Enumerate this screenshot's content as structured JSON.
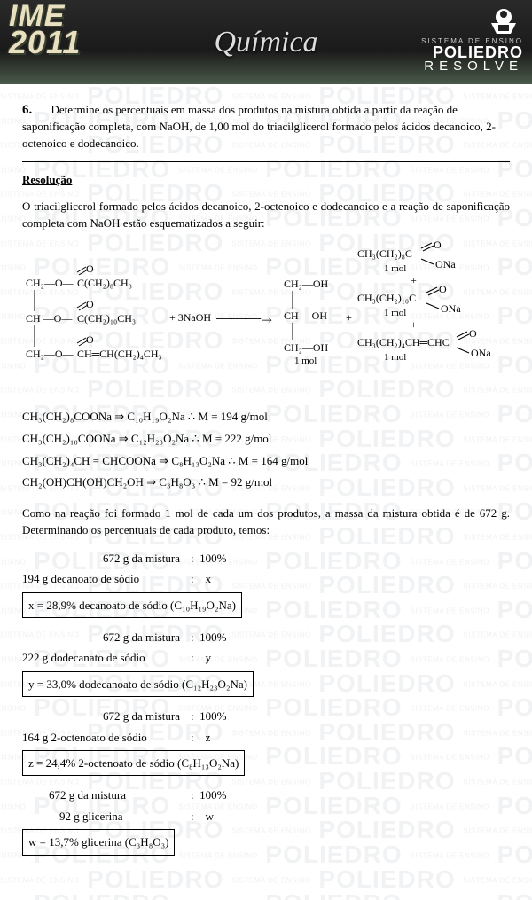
{
  "header": {
    "ime_line1": "IME",
    "ime_line2": "2011",
    "subject": "Química",
    "brand_sys": "SISTEMA DE ENSINO",
    "brand_name": "POLIEDRO",
    "brand_sub": "RESOLVE"
  },
  "watermark": {
    "big": "POLIEDRO",
    "small": "SISTEMA DE ENSINO"
  },
  "question": {
    "number": "6.",
    "text": "Determine os percentuais em massa dos produtos na mistura obtida a partir da reação de saponificação completa, com NaOH, de 1,00 mol do triacilglicerol formado pelos ácidos decanoico, 2-octenoico e dodecanoico."
  },
  "res_title": "Resolução",
  "intro": "O triacilglicerol formado pelos ácidos decanoico, 2-octenoico e dodecanoico e a reação de saponificação completa com  NaOH  estão esquematizados a seguir:",
  "scheme": {
    "r1": "C(CH₂)₈CH₃",
    "r2": "C(CH₂)₁₀CH₃",
    "r3": "CH═CH(CH₂)₄CH₃",
    "reagent": "+ 3NaOH",
    "gly1": "CH₂—OH",
    "gly2": "CH —OH",
    "gly3": "CH₂—OH",
    "onemol": "1 mol",
    "plus": "+",
    "p1": "CH₃(CH₂)₈C",
    "p2": "CH₃(CH₂)₁₀C",
    "p3": "CH₃(CH₂)₄CH═CHC",
    "ona": "ONa",
    "o": "O"
  },
  "molar": [
    "CH₃(CH₂)₈COONa   ⇒   C₁₀H₁₉O₂Na    ∴    M = 194 g/mol",
    "CH₃(CH₂)₁₀COONa   ⇒   C₁₂H₂₃O₂Na    ∴    M = 222 g/mol",
    "CH₃(CH₂)₄CH = CHCOONa   ⇒   C₈H₁₃O₂Na    ∴    M = 164 g/mol",
    "CH₂(OH)CH(OH)CH₂OH   ⇒   C₃H₈O₃    ∴    M = 92 g/mol"
  ],
  "para2": "Como na reação foi formado 1 mol de cada um dos produtos, a massa da mistura obtida é de 672 g. Determinando os percentuais de cada produto, temos:",
  "calcs": [
    {
      "a": "672 g da mistura",
      "ap": "100%",
      "b": "194 g decanoato de sódio",
      "bp": "x",
      "box": "x = 28,9% decanoato de sódio  (C₁₀H₁₉O₂Na)"
    },
    {
      "a": "672 g da mistura",
      "ap": "100%",
      "b": "222 g dodecanato de sódio",
      "bp": "y",
      "box": "y = 33,0% dodecanoato de sódio  (C₁₂H₂₃O₂Na)"
    },
    {
      "a": "672 g da mistura",
      "ap": "100%",
      "b": "164 g 2-octenoato  de  sódio",
      "bp": "z",
      "box": "z = 24,4% 2-octenoato de sódio  (C₈H₁₃O₂Na)"
    },
    {
      "a": "672 g da mistura",
      "ap": "100%",
      "b": "92 g glicerina",
      "bp": "w",
      "box": "w = 13,7% glicerina  (C₃H₈O₃)"
    }
  ]
}
